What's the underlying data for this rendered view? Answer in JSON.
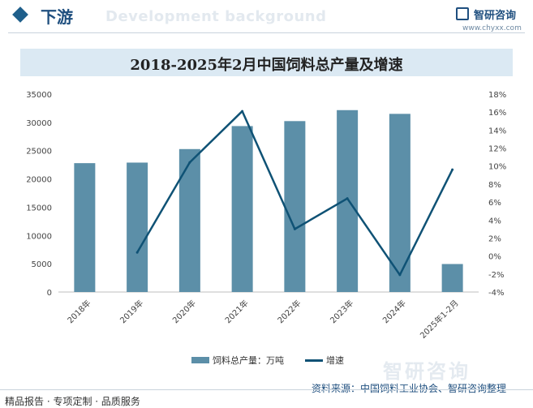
{
  "header": {
    "section_title": "下游",
    "watermark": "Development background",
    "logo_text": "智研咨询",
    "logo_url": "www.chyxx.com"
  },
  "colors": {
    "bar": "#5c8fa8",
    "line": "#0f5275",
    "title_band": "#dbe9f3",
    "accent": "#1f4f7f"
  },
  "chart_data": {
    "type": "bar",
    "title": "2018-2025年2月中国饲料总产量及增速",
    "categories": [
      "2018年",
      "2019年",
      "2020年",
      "2021年",
      "2022年",
      "2023年",
      "2024年",
      "2025年1-2月"
    ],
    "series": [
      {
        "name": "饲料总产量：万吨",
        "type": "bar",
        "axis": "left",
        "values": [
          22788,
          22885,
          25276,
          29344,
          30223,
          32163,
          31504,
          4950
        ]
      },
      {
        "name": "增速",
        "type": "line",
        "axis": "right",
        "unit": "%",
        "values": [
          null,
          0.4,
          10.4,
          16.1,
          3.0,
          6.4,
          -2.1,
          9.6
        ]
      }
    ],
    "y_left": {
      "min": 0,
      "max": 35000,
      "ticks": [
        "0",
        "5000",
        "10000",
        "15000",
        "20000",
        "25000",
        "30000",
        "35000"
      ]
    },
    "y_right": {
      "min": -4,
      "max": 18,
      "ticks": [
        "-4%",
        "-2%",
        "0%",
        "2%",
        "4%",
        "6%",
        "8%",
        "10%",
        "12%",
        "14%",
        "16%",
        "18%"
      ]
    },
    "legend_position": "bottom",
    "grid": false
  },
  "footer": {
    "left": "精品报告 · 专项定制 · 品质服务",
    "source": "资料来源：中国饲料工业协会、智研咨询整理",
    "watermark": "智研咨询"
  }
}
